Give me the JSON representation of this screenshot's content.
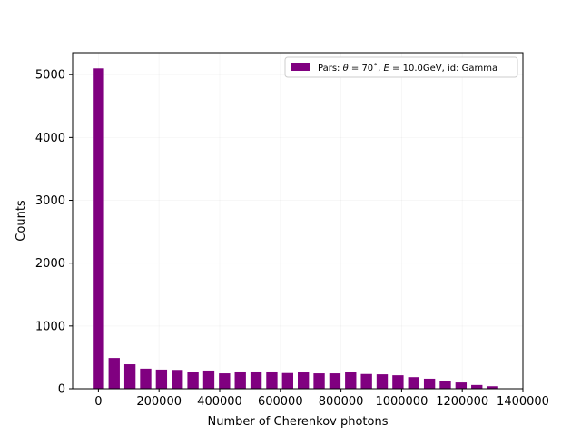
{
  "chart_data": {
    "type": "bar",
    "xlabel": "Number of Cherenkov photons",
    "ylabel": "Counts",
    "xlim": [
      -85000,
      1400000
    ],
    "ylim": [
      0,
      5350
    ],
    "xticks": [
      0,
      200000,
      400000,
      600000,
      800000,
      1000000,
      1200000,
      1400000
    ],
    "xtick_labels": [
      "0",
      "200000",
      "400000",
      "600000",
      "800000",
      "1000000",
      "1200000",
      "1400000"
    ],
    "yticks": [
      0,
      1000,
      2000,
      3000,
      4000,
      5000
    ],
    "ytick_labels": [
      "0",
      "1000",
      "2000",
      "3000",
      "4000",
      "5000"
    ],
    "grid": true,
    "legend_position": "top-right",
    "bar_width": 37000,
    "color": "#800080",
    "series": [
      {
        "name": "Pars: θ = 70˚, E = 10.0GeV, id: Gamma",
        "x": [
          0,
          52000,
          104000,
          156000,
          208000,
          260000,
          312000,
          364000,
          416000,
          468000,
          520000,
          572000,
          624000,
          676000,
          728000,
          780000,
          832000,
          884000,
          936000,
          988000,
          1040000,
          1092000,
          1144000,
          1196000,
          1248000,
          1300000
        ],
        "values": [
          5100,
          490,
          390,
          320,
          305,
          300,
          265,
          290,
          245,
          275,
          275,
          275,
          250,
          260,
          245,
          245,
          270,
          235,
          230,
          215,
          185,
          160,
          130,
          100,
          60,
          40
        ]
      }
    ]
  },
  "legend": {
    "prefix": "Pars: ",
    "theta_symbol": "θ",
    "theta_value": " = 70˚, ",
    "energy_symbol": "E",
    "energy_value": " = 10.0GeV, id: Gamma"
  }
}
